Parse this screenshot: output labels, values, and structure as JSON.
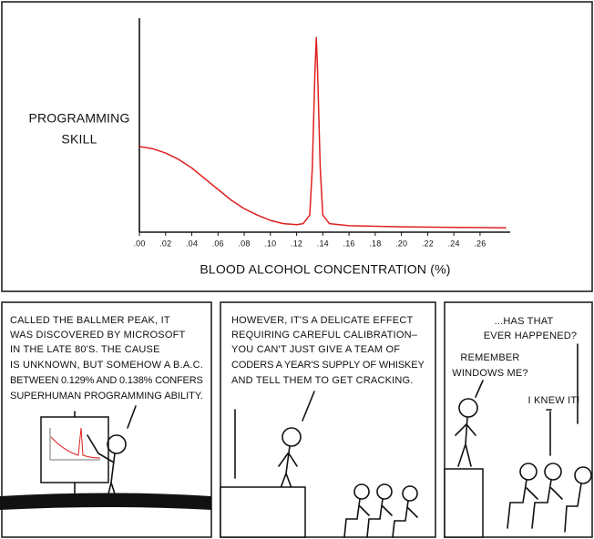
{
  "chart_data": {
    "type": "line",
    "y_label": [
      "PROGRAMMING",
      "SKILL"
    ],
    "x_label": "BLOOD ALCOHOL CONCENTRATION (%)",
    "x": [
      0,
      0.01,
      0.02,
      0.03,
      0.04,
      0.05,
      0.06,
      0.07,
      0.08,
      0.09,
      0.1,
      0.11,
      0.12,
      0.125,
      0.13,
      0.132,
      0.134,
      0.135,
      0.136,
      0.138,
      0.14,
      0.145,
      0.16,
      0.2,
      0.28
    ],
    "values": [
      40,
      39,
      37,
      34,
      30,
      25,
      20,
      15,
      11,
      8,
      5.5,
      4,
      3.5,
      4,
      8,
      30,
      75,
      91,
      75,
      30,
      8,
      4,
      3,
      2.5,
      2
    ],
    "color": "#e02020",
    "xlim": [
      0,
      0.283
    ],
    "ylim": [
      0,
      100
    ],
    "xticks": [
      {
        "value": 0,
        "label": ".00"
      },
      {
        "value": 0.02,
        "label": ".02"
      },
      {
        "value": 0.04,
        "label": ".04"
      },
      {
        "value": 0.06,
        "label": ".06"
      },
      {
        "value": 0.08,
        "label": ".08"
      },
      {
        "value": 0.1,
        "label": ".10"
      },
      {
        "value": 0.12,
        "label": ".12"
      },
      {
        "value": 0.14,
        "label": ".14"
      },
      {
        "value": 0.16,
        "label": ".16"
      },
      {
        "value": 0.18,
        "label": ".18"
      },
      {
        "value": 0.2,
        "label": ".20"
      },
      {
        "value": 0.22,
        "label": ".22"
      },
      {
        "value": 0.24,
        "label": ".24"
      },
      {
        "value": 0.26,
        "label": ".26"
      }
    ]
  },
  "panels": [
    {
      "speeches": [
        {
          "lines": [
            "CALLED THE BALLMER PEAK, IT",
            "WAS DISCOVERED BY MICROSOFT",
            "IN THE LATE 80'S. THE CAUSE",
            "IS UNKNOWN, BUT SOMEHOW A B.A.C.",
            "BETWEEN 0.129% AND 0.138% CONFERS",
            "SUPERHUMAN PROGRAMMING ABILITY."
          ]
        }
      ]
    },
    {
      "speeches": [
        {
          "lines": [
            "HOWEVER, IT'S A DELICATE EFFECT",
            "REQUIRING CAREFUL CALIBRATION–",
            "YOU CAN'T JUST GIVE A TEAM OF",
            "CODERS A YEAR'S SUPPLY OF WHISKEY",
            "AND TELL THEM TO GET CRACKING."
          ]
        }
      ]
    },
    {
      "speeches": [
        {
          "lines": [
            "...HAS THAT",
            "EVER HAPPENED?"
          ]
        },
        {
          "lines": [
            "REMEMBER",
            "WINDOWS ME?"
          ]
        },
        {
          "lines": [
            "I KNEW IT!"
          ]
        }
      ]
    }
  ]
}
